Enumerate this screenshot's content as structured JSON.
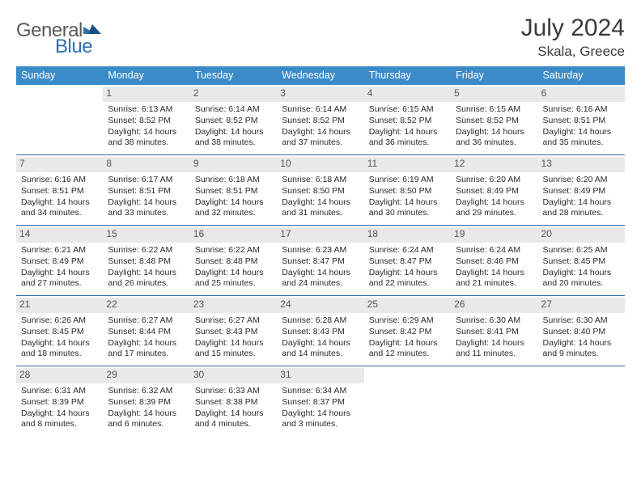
{
  "brand": {
    "general": "General",
    "blue": "Blue"
  },
  "title": "July 2024",
  "location": "Skala, Greece",
  "colors": {
    "header_bg": "#3b8bc9",
    "week_border": "#2d6aa3",
    "daynum_bg": "#e9e9e9",
    "text": "#2b2b2b"
  },
  "weekdays": [
    "Sunday",
    "Monday",
    "Tuesday",
    "Wednesday",
    "Thursday",
    "Friday",
    "Saturday"
  ],
  "weeks": [
    [
      {
        "n": "",
        "sr": "",
        "ss": "",
        "d1": "",
        "d2": ""
      },
      {
        "n": "1",
        "sr": "Sunrise: 6:13 AM",
        "ss": "Sunset: 8:52 PM",
        "d1": "Daylight: 14 hours",
        "d2": "and 38 minutes."
      },
      {
        "n": "2",
        "sr": "Sunrise: 6:14 AM",
        "ss": "Sunset: 8:52 PM",
        "d1": "Daylight: 14 hours",
        "d2": "and 38 minutes."
      },
      {
        "n": "3",
        "sr": "Sunrise: 6:14 AM",
        "ss": "Sunset: 8:52 PM",
        "d1": "Daylight: 14 hours",
        "d2": "and 37 minutes."
      },
      {
        "n": "4",
        "sr": "Sunrise: 6:15 AM",
        "ss": "Sunset: 8:52 PM",
        "d1": "Daylight: 14 hours",
        "d2": "and 36 minutes."
      },
      {
        "n": "5",
        "sr": "Sunrise: 6:15 AM",
        "ss": "Sunset: 8:52 PM",
        "d1": "Daylight: 14 hours",
        "d2": "and 36 minutes."
      },
      {
        "n": "6",
        "sr": "Sunrise: 6:16 AM",
        "ss": "Sunset: 8:51 PM",
        "d1": "Daylight: 14 hours",
        "d2": "and 35 minutes."
      }
    ],
    [
      {
        "n": "7",
        "sr": "Sunrise: 6:16 AM",
        "ss": "Sunset: 8:51 PM",
        "d1": "Daylight: 14 hours",
        "d2": "and 34 minutes."
      },
      {
        "n": "8",
        "sr": "Sunrise: 6:17 AM",
        "ss": "Sunset: 8:51 PM",
        "d1": "Daylight: 14 hours",
        "d2": "and 33 minutes."
      },
      {
        "n": "9",
        "sr": "Sunrise: 6:18 AM",
        "ss": "Sunset: 8:51 PM",
        "d1": "Daylight: 14 hours",
        "d2": "and 32 minutes."
      },
      {
        "n": "10",
        "sr": "Sunrise: 6:18 AM",
        "ss": "Sunset: 8:50 PM",
        "d1": "Daylight: 14 hours",
        "d2": "and 31 minutes."
      },
      {
        "n": "11",
        "sr": "Sunrise: 6:19 AM",
        "ss": "Sunset: 8:50 PM",
        "d1": "Daylight: 14 hours",
        "d2": "and 30 minutes."
      },
      {
        "n": "12",
        "sr": "Sunrise: 6:20 AM",
        "ss": "Sunset: 8:49 PM",
        "d1": "Daylight: 14 hours",
        "d2": "and 29 minutes."
      },
      {
        "n": "13",
        "sr": "Sunrise: 6:20 AM",
        "ss": "Sunset: 8:49 PM",
        "d1": "Daylight: 14 hours",
        "d2": "and 28 minutes."
      }
    ],
    [
      {
        "n": "14",
        "sr": "Sunrise: 6:21 AM",
        "ss": "Sunset: 8:49 PM",
        "d1": "Daylight: 14 hours",
        "d2": "and 27 minutes."
      },
      {
        "n": "15",
        "sr": "Sunrise: 6:22 AM",
        "ss": "Sunset: 8:48 PM",
        "d1": "Daylight: 14 hours",
        "d2": "and 26 minutes."
      },
      {
        "n": "16",
        "sr": "Sunrise: 6:22 AM",
        "ss": "Sunset: 8:48 PM",
        "d1": "Daylight: 14 hours",
        "d2": "and 25 minutes."
      },
      {
        "n": "17",
        "sr": "Sunrise: 6:23 AM",
        "ss": "Sunset: 8:47 PM",
        "d1": "Daylight: 14 hours",
        "d2": "and 24 minutes."
      },
      {
        "n": "18",
        "sr": "Sunrise: 6:24 AM",
        "ss": "Sunset: 8:47 PM",
        "d1": "Daylight: 14 hours",
        "d2": "and 22 minutes."
      },
      {
        "n": "19",
        "sr": "Sunrise: 6:24 AM",
        "ss": "Sunset: 8:46 PM",
        "d1": "Daylight: 14 hours",
        "d2": "and 21 minutes."
      },
      {
        "n": "20",
        "sr": "Sunrise: 6:25 AM",
        "ss": "Sunset: 8:45 PM",
        "d1": "Daylight: 14 hours",
        "d2": "and 20 minutes."
      }
    ],
    [
      {
        "n": "21",
        "sr": "Sunrise: 6:26 AM",
        "ss": "Sunset: 8:45 PM",
        "d1": "Daylight: 14 hours",
        "d2": "and 18 minutes."
      },
      {
        "n": "22",
        "sr": "Sunrise: 6:27 AM",
        "ss": "Sunset: 8:44 PM",
        "d1": "Daylight: 14 hours",
        "d2": "and 17 minutes."
      },
      {
        "n": "23",
        "sr": "Sunrise: 6:27 AM",
        "ss": "Sunset: 8:43 PM",
        "d1": "Daylight: 14 hours",
        "d2": "and 15 minutes."
      },
      {
        "n": "24",
        "sr": "Sunrise: 6:28 AM",
        "ss": "Sunset: 8:43 PM",
        "d1": "Daylight: 14 hours",
        "d2": "and 14 minutes."
      },
      {
        "n": "25",
        "sr": "Sunrise: 6:29 AM",
        "ss": "Sunset: 8:42 PM",
        "d1": "Daylight: 14 hours",
        "d2": "and 12 minutes."
      },
      {
        "n": "26",
        "sr": "Sunrise: 6:30 AM",
        "ss": "Sunset: 8:41 PM",
        "d1": "Daylight: 14 hours",
        "d2": "and 11 minutes."
      },
      {
        "n": "27",
        "sr": "Sunrise: 6:30 AM",
        "ss": "Sunset: 8:40 PM",
        "d1": "Daylight: 14 hours",
        "d2": "and 9 minutes."
      }
    ],
    [
      {
        "n": "28",
        "sr": "Sunrise: 6:31 AM",
        "ss": "Sunset: 8:39 PM",
        "d1": "Daylight: 14 hours",
        "d2": "and 8 minutes."
      },
      {
        "n": "29",
        "sr": "Sunrise: 6:32 AM",
        "ss": "Sunset: 8:39 PM",
        "d1": "Daylight: 14 hours",
        "d2": "and 6 minutes."
      },
      {
        "n": "30",
        "sr": "Sunrise: 6:33 AM",
        "ss": "Sunset: 8:38 PM",
        "d1": "Daylight: 14 hours",
        "d2": "and 4 minutes."
      },
      {
        "n": "31",
        "sr": "Sunrise: 6:34 AM",
        "ss": "Sunset: 8:37 PM",
        "d1": "Daylight: 14 hours",
        "d2": "and 3 minutes."
      },
      {
        "n": "",
        "sr": "",
        "ss": "",
        "d1": "",
        "d2": ""
      },
      {
        "n": "",
        "sr": "",
        "ss": "",
        "d1": "",
        "d2": ""
      },
      {
        "n": "",
        "sr": "",
        "ss": "",
        "d1": "",
        "d2": ""
      }
    ]
  ]
}
